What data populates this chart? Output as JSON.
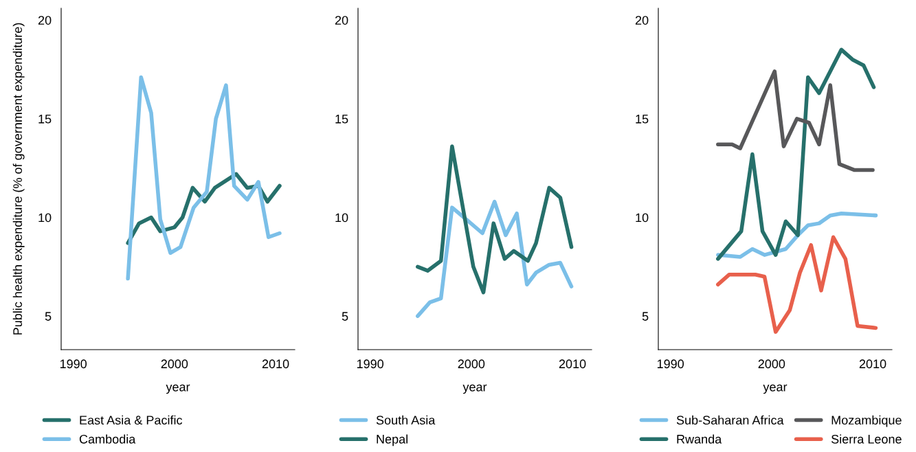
{
  "chart_data": [
    {
      "type": "line",
      "xlabel": "year",
      "ylabel": "Public health expenditure (% of government expenditure)",
      "xlim": [
        1988.8,
        2011.9
      ],
      "ylim": [
        3.3,
        20.6
      ],
      "xticks": [
        1990,
        2000,
        2010
      ],
      "yticks": [
        5,
        10,
        15,
        20
      ],
      "legend": "bottom",
      "grid": false,
      "series": [
        {
          "name": "East Asia & Pacific",
          "color": "#26706b",
          "x": [
            1995.4,
            1996.5,
            1997.7,
            1998.6,
            2000.0,
            2000.8,
            2001.8,
            2003.0,
            2004.0,
            2006.1,
            2007.2,
            2008.3,
            2009.2,
            2010.4
          ],
          "values": [
            8.7,
            9.7,
            10.0,
            9.3,
            9.5,
            10.0,
            11.5,
            10.8,
            11.5,
            12.2,
            11.5,
            11.6,
            10.8,
            11.6
          ]
        },
        {
          "name": "Cambodia",
          "color": "#7bbfe8",
          "x": [
            1995.4,
            1996.7,
            1997.7,
            1998.6,
            1999.6,
            2000.6,
            2001.9,
            2003.2,
            2004.1,
            2005.1,
            2005.9,
            2007.2,
            2008.3,
            2009.3,
            2010.4
          ],
          "values": [
            6.9,
            17.1,
            15.3,
            9.9,
            8.2,
            8.5,
            10.5,
            11.3,
            15.0,
            16.7,
            11.6,
            10.9,
            11.8,
            9.0,
            9.2
          ]
        }
      ]
    },
    {
      "type": "line",
      "xlabel": "year",
      "xlim": [
        1988.8,
        2011.9
      ],
      "ylim": [
        3.3,
        20.6
      ],
      "xticks": [
        1990,
        2000,
        2010
      ],
      "yticks": [
        5,
        10,
        15,
        20
      ],
      "legend": "bottom",
      "grid": false,
      "series": [
        {
          "name": "South Asia",
          "color": "#7bbfe8",
          "x": [
            1994.7,
            1995.9,
            1997.0,
            1998.1,
            1999.5,
            2001.1,
            2002.3,
            2003.4,
            2004.5,
            2005.5,
            2006.4,
            2007.7,
            2008.8,
            2009.9
          ],
          "values": [
            5.0,
            5.7,
            5.9,
            10.5,
            9.9,
            9.2,
            10.8,
            9.1,
            10.2,
            6.6,
            7.2,
            7.6,
            7.7,
            6.5
          ]
        },
        {
          "name": "Nepal",
          "color": "#26706b",
          "x": [
            1994.7,
            1995.7,
            1997.0,
            1998.1,
            2000.2,
            2001.2,
            2002.2,
            2003.3,
            2004.2,
            2005.6,
            2006.4,
            2007.7,
            2008.8,
            2009.9
          ],
          "values": [
            7.5,
            7.3,
            7.8,
            13.6,
            7.5,
            6.2,
            9.7,
            7.9,
            8.3,
            7.8,
            8.7,
            11.5,
            11.0,
            8.5
          ]
        }
      ]
    },
    {
      "type": "line",
      "xlabel": "year",
      "xlim": [
        1988.8,
        2011.9
      ],
      "ylim": [
        3.3,
        20.6
      ],
      "xticks": [
        1990,
        2000,
        2010
      ],
      "yticks": [
        5,
        10,
        15,
        20
      ],
      "legend": "bottom",
      "grid": false,
      "series": [
        {
          "name": "Sub-Saharan Africa",
          "color": "#7bbfe8",
          "x": [
            1994.7,
            1996.9,
            1998.1,
            1999.3,
            2001.4,
            2002.6,
            2003.6,
            2004.7,
            2005.8,
            2006.9,
            2010.3
          ],
          "values": [
            8.1,
            8.0,
            8.4,
            8.1,
            8.4,
            9.1,
            9.6,
            9.7,
            10.1,
            10.2,
            10.1
          ]
        },
        {
          "name": "Rwanda",
          "color": "#26706b",
          "x": [
            1994.7,
            1997.0,
            1998.1,
            1999.1,
            2000.4,
            2001.4,
            2002.6,
            2003.6,
            2004.7,
            2005.3,
            2006.9,
            2008.0,
            2009.1,
            2010.1
          ],
          "values": [
            7.9,
            9.3,
            13.2,
            9.3,
            8.1,
            9.8,
            9.1,
            17.1,
            16.3,
            16.9,
            18.5,
            18.0,
            17.7,
            16.6
          ]
        },
        {
          "name": "Mozambique",
          "color": "#58585a",
          "x": [
            1994.7,
            1996.1,
            1996.9,
            2000.3,
            2001.2,
            2002.5,
            2003.7,
            2004.7,
            2005.8,
            2006.7,
            2008.2,
            2010.0
          ],
          "values": [
            13.7,
            13.7,
            13.5,
            17.4,
            13.6,
            15.0,
            14.8,
            13.7,
            16.7,
            12.7,
            12.4,
            12.4
          ]
        },
        {
          "name": "Sierra Leone",
          "color": "#e8604c",
          "x": [
            1994.7,
            1995.8,
            1998.4,
            1999.3,
            2000.4,
            2001.8,
            2002.8,
            2003.9,
            2004.9,
            2006.1,
            2007.3,
            2008.5,
            2010.3
          ],
          "values": [
            6.6,
            7.1,
            7.1,
            7.0,
            4.2,
            5.3,
            7.2,
            8.6,
            6.3,
            9.0,
            7.9,
            4.5,
            4.4
          ]
        }
      ]
    }
  ]
}
